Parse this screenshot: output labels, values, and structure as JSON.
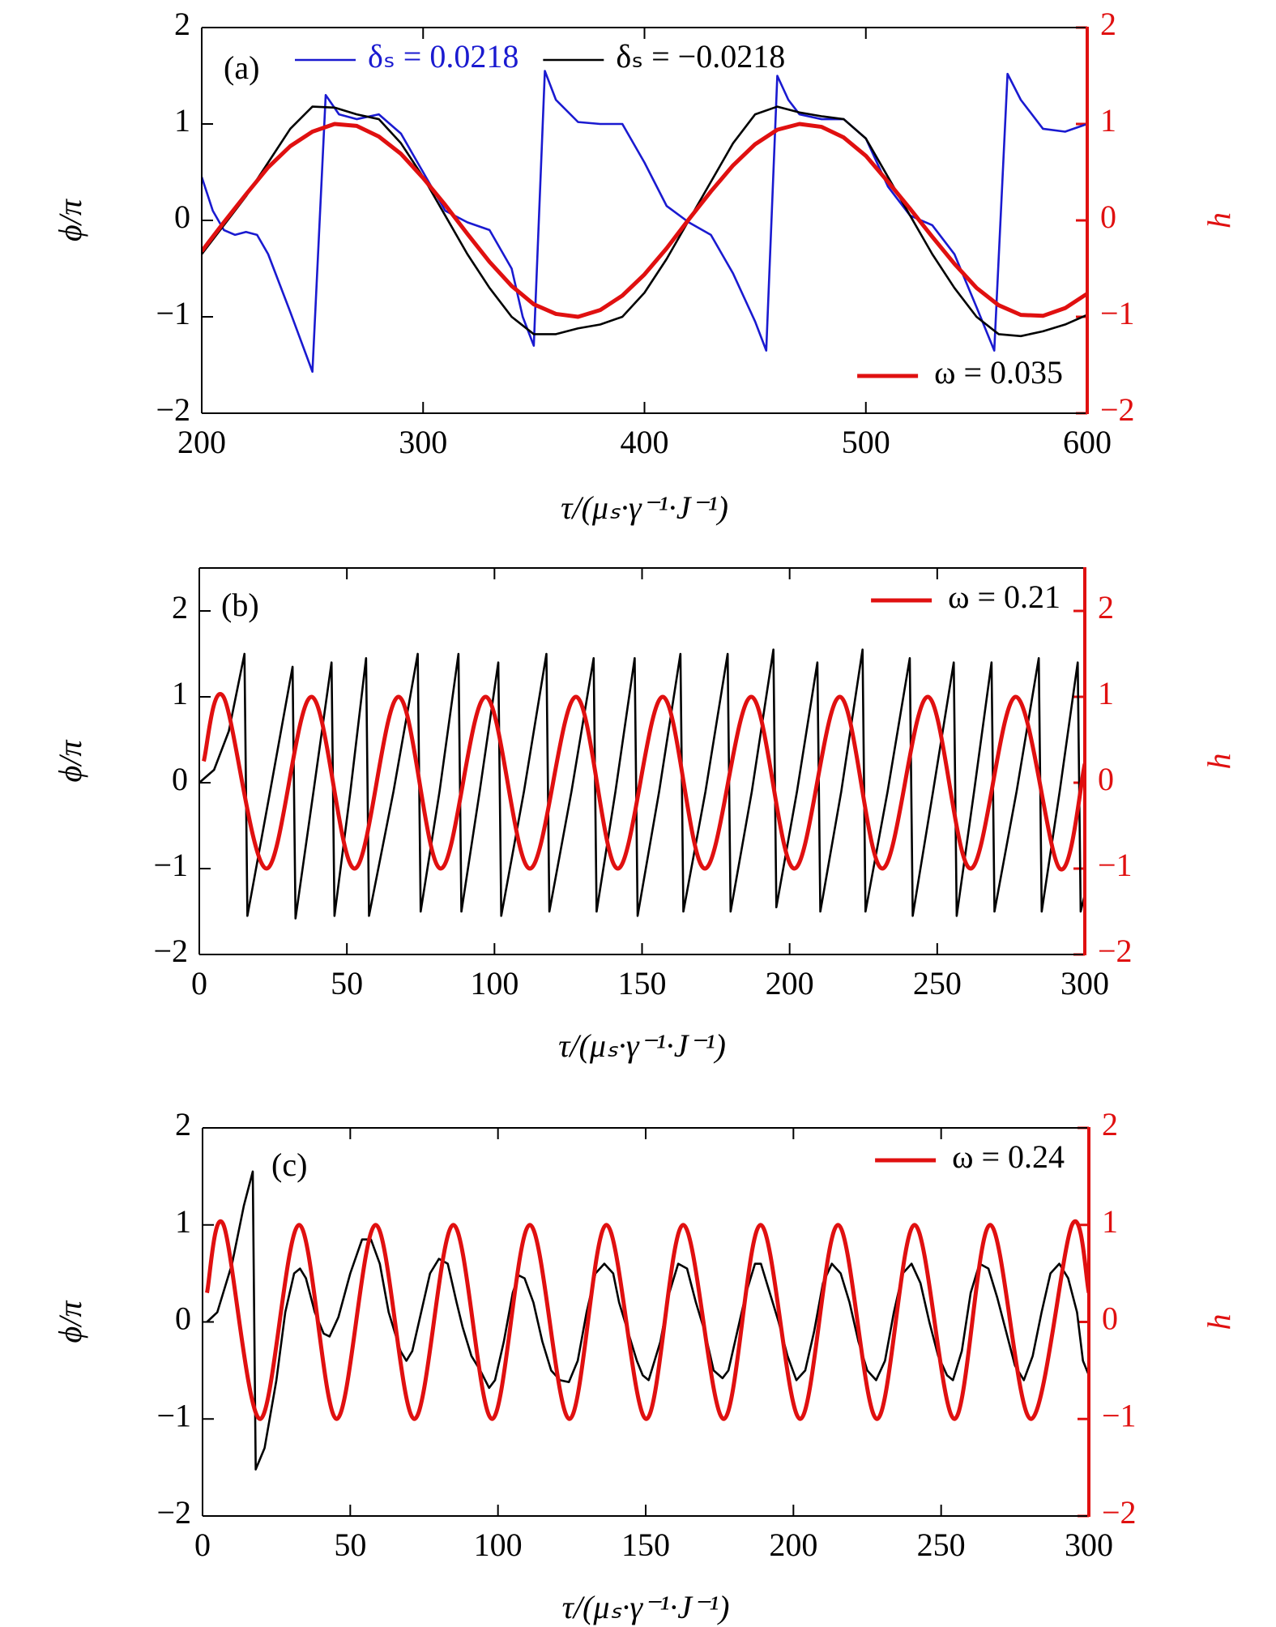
{
  "chart_data": [
    {
      "type": "line",
      "label": "(a)",
      "ylabel": "ϕ/π",
      "y2label": "h",
      "xlabel": "τ/(μₛ·γ⁻¹·J⁻¹)",
      "xlim": [
        200,
        600
      ],
      "xticks": [
        200,
        300,
        400,
        500,
        600
      ],
      "ylim": [
        -2,
        2
      ],
      "yticks": [
        {
          "value": -2,
          "label": "−2"
        },
        {
          "value": -1,
          "label": "−1"
        },
        0,
        1,
        2
      ],
      "y2lim": [
        -2,
        2
      ],
      "y2ticks": [
        {
          "value": -2,
          "label": "−2"
        },
        {
          "value": -1,
          "label": "−1"
        },
        0,
        1,
        2
      ],
      "series": [
        {
          "name": "δₛ = 0.0218",
          "color": "#1a1ad0",
          "legend": "upper center",
          "legend_text_color": "#1a1ad0",
          "x": [
            200,
            205,
            210,
            215,
            220,
            225,
            230,
            240,
            250,
            256,
            262,
            270,
            280,
            290,
            300,
            310,
            320,
            330,
            340,
            345,
            350,
            355,
            360,
            370,
            380,
            390,
            400,
            410,
            420,
            430,
            440,
            450,
            455,
            460,
            465,
            470,
            480,
            490,
            500,
            510,
            520,
            530,
            540,
            550,
            558,
            564,
            570,
            580,
            590,
            600
          ],
          "values": [
            0.45,
            0.1,
            -0.1,
            -0.15,
            -0.12,
            -0.15,
            -0.35,
            -0.95,
            -1.57,
            1.3,
            1.1,
            1.05,
            1.1,
            0.9,
            0.5,
            0.1,
            -0.02,
            -0.1,
            -0.5,
            -1.0,
            -1.3,
            1.55,
            1.25,
            1.02,
            1.0,
            1.0,
            0.6,
            0.15,
            -0.02,
            -0.15,
            -0.55,
            -1.05,
            -1.35,
            1.5,
            1.25,
            1.1,
            1.05,
            1.05,
            0.85,
            0.35,
            0.05,
            -0.05,
            -0.35,
            -0.9,
            -1.35,
            1.52,
            1.25,
            0.95,
            0.92,
            1.0
          ]
        },
        {
          "name": "δₛ = −0.0218",
          "color": "#000000",
          "legend": "upper center",
          "x": [
            200,
            210,
            220,
            230,
            240,
            250,
            260,
            270,
            280,
            290,
            300,
            310,
            320,
            330,
            340,
            350,
            360,
            370,
            380,
            390,
            400,
            410,
            420,
            430,
            440,
            450,
            460,
            470,
            480,
            490,
            500,
            510,
            520,
            530,
            540,
            550,
            560,
            570,
            580,
            590,
            600
          ],
          "values": [
            -0.35,
            -0.05,
            0.25,
            0.6,
            0.95,
            1.18,
            1.17,
            1.1,
            1.05,
            0.8,
            0.45,
            0.05,
            -0.35,
            -0.7,
            -1.0,
            -1.18,
            -1.18,
            -1.12,
            -1.08,
            -1.0,
            -0.75,
            -0.4,
            0.0,
            0.4,
            0.8,
            1.1,
            1.18,
            1.12,
            1.08,
            1.05,
            0.85,
            0.45,
            0.05,
            -0.35,
            -0.7,
            -1.0,
            -1.18,
            -1.2,
            -1.15,
            -1.08,
            -0.98
          ]
        },
        {
          "name": "ω = 0.035",
          "color": "#e01010",
          "axis": "y2",
          "legend": "lower right",
          "width": 5,
          "x": [
            200,
            210,
            220,
            230,
            240,
            250,
            260,
            270,
            280,
            290,
            300,
            310,
            320,
            330,
            340,
            350,
            360,
            370,
            380,
            390,
            400,
            410,
            420,
            430,
            440,
            450,
            460,
            470,
            480,
            490,
            500,
            510,
            520,
            530,
            540,
            550,
            560,
            570,
            580,
            590,
            600
          ],
          "values": [
            -0.32,
            -0.02,
            0.27,
            0.55,
            0.77,
            0.92,
            1.0,
            0.98,
            0.87,
            0.69,
            0.44,
            0.16,
            -0.14,
            -0.43,
            -0.68,
            -0.87,
            -0.97,
            -1.0,
            -0.93,
            -0.78,
            -0.56,
            -0.29,
            0.01,
            0.3,
            0.57,
            0.79,
            0.94,
            1.0,
            0.97,
            0.86,
            0.67,
            0.4,
            0.12,
            -0.17,
            -0.45,
            -0.7,
            -0.88,
            -0.98,
            -0.99,
            -0.91,
            -0.76
          ]
        }
      ]
    },
    {
      "type": "line",
      "label": "(b)",
      "ylabel": "ϕ/π",
      "y2label": "h",
      "xlabel": "τ/(μₛ·γ⁻¹·J⁻¹)",
      "xlim": [
        0,
        300
      ],
      "xticks": [
        0,
        50,
        100,
        150,
        200,
        250,
        300
      ],
      "ylim": [
        -2,
        2.5
      ],
      "yticks": [
        {
          "value": -2,
          "label": "−2"
        },
        {
          "value": -1,
          "label": "−1"
        },
        0,
        1,
        2
      ],
      "y2lim": [
        -2,
        2.5
      ],
      "y2ticks": [
        {
          "value": -2,
          "label": "−2"
        },
        {
          "value": -1,
          "label": "−1"
        },
        0,
        1,
        2
      ],
      "series": [
        {
          "name": "ϕ",
          "color": "#000000",
          "x": [
            0,
            5,
            10,
            15.3,
            16.3,
            24,
            31.6,
            32.6,
            38.7,
            44.8,
            45.8,
            51.2,
            56.5,
            57.5,
            65.8,
            74,
            75,
            81.4,
            87.8,
            88.8,
            95,
            101.3,
            102.3,
            110,
            117.6,
            118.6,
            126.1,
            133.6,
            134.6,
            141,
            147.5,
            148.5,
            155.8,
            163,
            164,
            171.5,
            179,
            180,
            187.2,
            194.5,
            195.5,
            202.5,
            209.4,
            210.4,
            217.5,
            224.7,
            225.7,
            233.2,
            240.7,
            241.7,
            248.6,
            255.6,
            256.6,
            262.5,
            268.4,
            269.4,
            276.9,
            284.4,
            285.4,
            291.5,
            297.6,
            298.6,
            300
          ],
          "values": [
            0,
            0.15,
            0.6,
            1.5,
            -1.55,
            -0.1,
            1.35,
            -1.58,
            -0.1,
            1.4,
            -1.55,
            -0.1,
            1.45,
            -1.55,
            -0.1,
            1.5,
            -1.5,
            -0.1,
            1.5,
            -1.5,
            -0.1,
            1.4,
            -1.55,
            -0.1,
            1.5,
            -1.5,
            -0.1,
            1.45,
            -1.5,
            -0.1,
            1.45,
            -1.55,
            -0.1,
            1.5,
            -1.5,
            -0.1,
            1.5,
            -1.5,
            -0.1,
            1.55,
            -1.45,
            -0.1,
            1.4,
            -1.5,
            -0.1,
            1.55,
            -1.5,
            -0.1,
            1.45,
            -1.55,
            -0.1,
            1.4,
            -1.55,
            -0.1,
            1.4,
            -1.5,
            -0.1,
            1.45,
            -1.5,
            -0.1,
            1.4,
            -1.5,
            -1.3
          ]
        },
        {
          "name": "ω = 0.21",
          "color": "#e01010",
          "axis": "y2",
          "legend": "upper right",
          "smooth": true,
          "width": 5,
          "x": [
            1.5,
            8.2,
            22.8,
            38,
            52.6,
            67.5,
            81.8,
            97,
            112,
            127.6,
            141.8,
            157,
            171.3,
            187,
            201.6,
            217,
            231.4,
            246.8,
            261.3,
            276.6,
            291.5,
            300
          ],
          "values": [
            0.25,
            1,
            -1,
            1,
            -1,
            1,
            -1,
            1,
            -1,
            1,
            -1,
            1,
            -1,
            1,
            -1,
            1,
            -1,
            1,
            -1,
            1,
            -1,
            0.22
          ]
        }
      ]
    },
    {
      "type": "line",
      "label": "(c)",
      "ylabel": "ϕ/π",
      "y2label": "h",
      "xlabel": "τ/(μₛ·γ⁻¹·J⁻¹)",
      "xlim": [
        0,
        300
      ],
      "xticks": [
        0,
        50,
        100,
        150,
        200,
        250,
        300
      ],
      "ylim": [
        -2,
        2
      ],
      "yticks": [
        {
          "value": -2,
          "label": "−2"
        },
        {
          "value": -1,
          "label": "−1"
        },
        0,
        1,
        2
      ],
      "y2lim": [
        -2,
        2
      ],
      "y2ticks": [
        {
          "value": -2,
          "label": "−2"
        },
        {
          "value": -1,
          "label": "−1"
        },
        0,
        1,
        2
      ],
      "series": [
        {
          "name": "ϕ",
          "color": "#000000",
          "x": [
            1.5,
            5,
            10,
            14,
            17,
            18,
            21,
            25,
            28,
            31,
            33,
            35,
            38,
            41,
            43,
            46,
            50,
            54,
            57,
            60,
            63,
            67,
            69,
            71,
            74,
            77,
            80,
            83,
            86,
            88,
            91,
            94,
            97,
            99,
            102,
            105,
            107,
            109,
            112,
            115,
            118,
            121,
            124,
            127,
            130,
            133,
            136,
            139,
            141,
            144,
            147,
            149,
            151,
            155,
            158,
            161,
            164,
            167,
            170,
            173,
            176,
            178,
            181,
            184,
            187,
            189,
            192,
            195,
            198,
            201,
            204,
            207,
            210,
            213,
            216,
            219,
            222,
            225,
            228,
            231,
            234,
            237,
            240,
            243,
            246,
            249,
            252,
            254,
            257,
            260,
            263,
            266,
            269,
            272,
            275,
            278,
            281,
            284,
            287,
            290,
            293,
            296,
            298,
            300
          ],
          "values": [
            0,
            0.1,
            0.6,
            1.2,
            1.55,
            -1.52,
            -1.3,
            -0.6,
            0.1,
            0.5,
            0.55,
            0.45,
            0.1,
            -0.12,
            -0.15,
            0.05,
            0.5,
            0.85,
            0.85,
            0.6,
            0.1,
            -0.3,
            -0.4,
            -0.3,
            0.1,
            0.5,
            0.65,
            0.6,
            0.2,
            -0.05,
            -0.35,
            -0.5,
            -0.68,
            -0.6,
            -0.2,
            0.3,
            0.48,
            0.45,
            0.2,
            -0.2,
            -0.5,
            -0.6,
            -0.62,
            -0.4,
            0.1,
            0.5,
            0.6,
            0.5,
            0.2,
            -0.1,
            -0.4,
            -0.55,
            -0.6,
            -0.2,
            0.3,
            0.6,
            0.55,
            0.2,
            -0.1,
            -0.5,
            -0.58,
            -0.5,
            -0.1,
            0.3,
            0.6,
            0.6,
            0.3,
            0,
            -0.35,
            -0.6,
            -0.5,
            -0.1,
            0.4,
            0.6,
            0.5,
            0.2,
            -0.2,
            -0.5,
            -0.6,
            -0.4,
            0.1,
            0.5,
            0.6,
            0.4,
            0,
            -0.35,
            -0.55,
            -0.6,
            -0.3,
            0.3,
            0.6,
            0.55,
            0.25,
            -0.1,
            -0.45,
            -0.6,
            -0.35,
            0.1,
            0.5,
            0.6,
            0.45,
            0.1,
            -0.4,
            -0.55
          ]
        },
        {
          "name": "ω = 0.24",
          "color": "#e01010",
          "axis": "y2",
          "legend": "upper right",
          "smooth": true,
          "width": 5,
          "x": [
            1.5,
            7.1,
            19.5,
            32.7,
            45.4,
            58.6,
            71.7,
            84.9,
            98,
            110.8,
            124.2,
            136.7,
            150.2,
            162.7,
            176.4,
            188.9,
            202.3,
            215.1,
            228.3,
            241,
            254.5,
            266.6,
            280.4,
            294.3,
            300
          ],
          "values": [
            0.3,
            1,
            -1,
            1,
            -1,
            1,
            -1,
            1,
            -1,
            1,
            -1,
            1,
            -1,
            1,
            -1,
            1,
            -1,
            1,
            -1,
            1,
            -1,
            1,
            -1,
            1,
            0.3
          ]
        }
      ]
    }
  ]
}
